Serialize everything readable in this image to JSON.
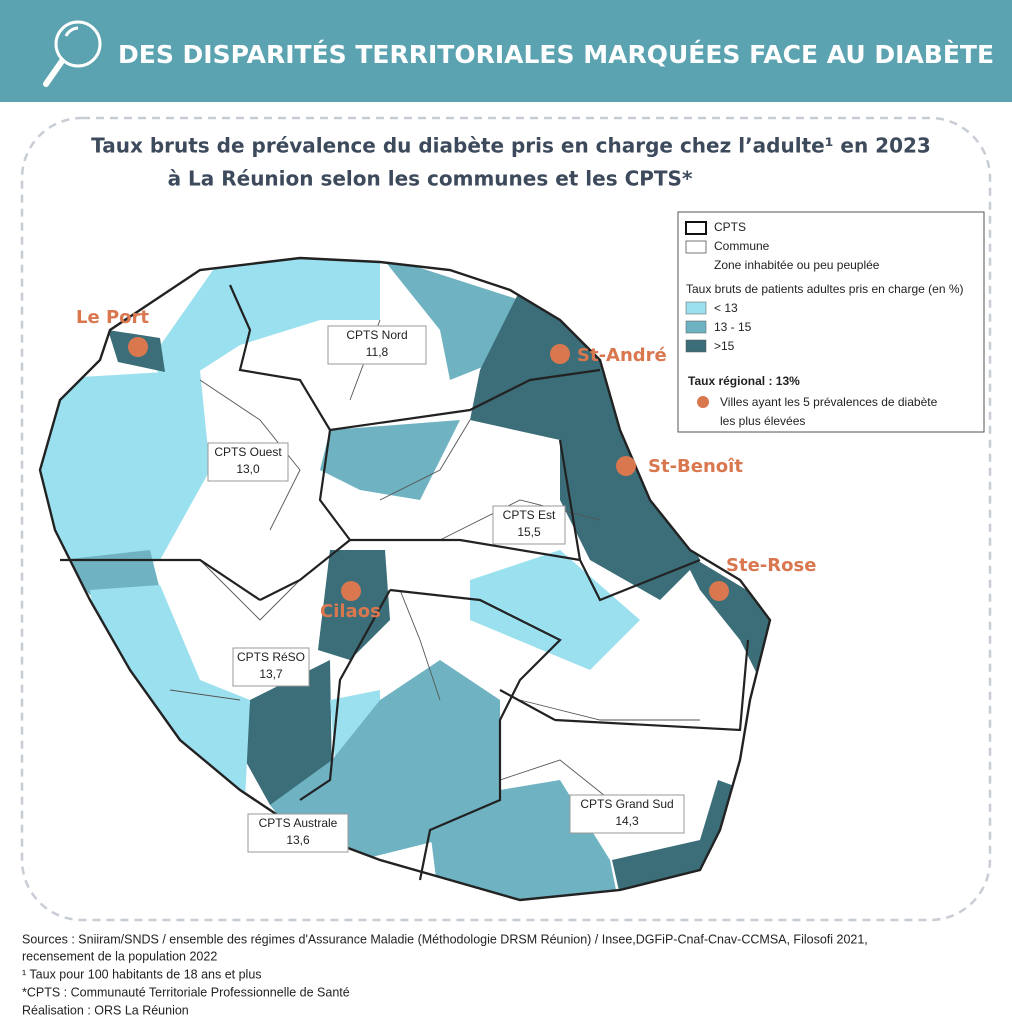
{
  "header": {
    "title": "DES DISPARITÉS TERRITORIALES MARQUÉES FACE AU DIABÈTE"
  },
  "map": {
    "title_lines": [
      "Taux bruts de prévalence du diabète pris en charge chez l’adulte¹ en 2023",
      "à La Réunion  selon les communes et les CPTS*"
    ],
    "legend": {
      "boundaries": [
        "CPTS",
        "Commune",
        "Zone inhabitée ou peu peuplée"
      ],
      "scale_title": "Taux bruts de patients adultes pris en charge (en %)",
      "classes": [
        {
          "label": "< 13",
          "color": "#9ae0ef"
        },
        {
          "label": "13 - 15",
          "color": "#6fb3c2"
        },
        {
          "label": ">15",
          "color": "#3b6e78"
        }
      ],
      "regional_rate": "Taux régional : 13%",
      "cities_note_lines": [
        "Villes ayant les 5 prévalences de diabète",
        "les plus élevées"
      ],
      "city_color": "#d9774f"
    },
    "cities": [
      {
        "label": "Le Port"
      },
      {
        "label": "St-André"
      },
      {
        "label": "St-Benoît"
      },
      {
        "label": "Ste-Rose"
      },
      {
        "label": "Cilaos"
      }
    ],
    "cpts": [
      {
        "name": "CPTS Nord",
        "value": "11,8"
      },
      {
        "name": "CPTS Ouest",
        "value": "13,0"
      },
      {
        "name": "CPTS Est",
        "value": "15,5"
      },
      {
        "name": "CPTS RéSO",
        "value": "13,7"
      },
      {
        "name": "CPTS Australe",
        "value": "13,6"
      },
      {
        "name": "CPTS Grand Sud",
        "value": "14,3"
      }
    ]
  },
  "footer": {
    "lines": [
      "Sources : Sniiram/SNDS / ensemble des régimes d'Assurance Maladie (Méthodologie DRSM Réunion) / Insee,DGFiP-Cnaf-Cnav-CCMSA, Filosofi 2021,",
      "recensement de la population 2022",
      "¹ Taux pour 100 habitants de 18 ans et plus",
      "*CPTS : Communauté Territoriale Professionnelle de Santé",
      "Réalisation : ORS La Réunion"
    ]
  }
}
